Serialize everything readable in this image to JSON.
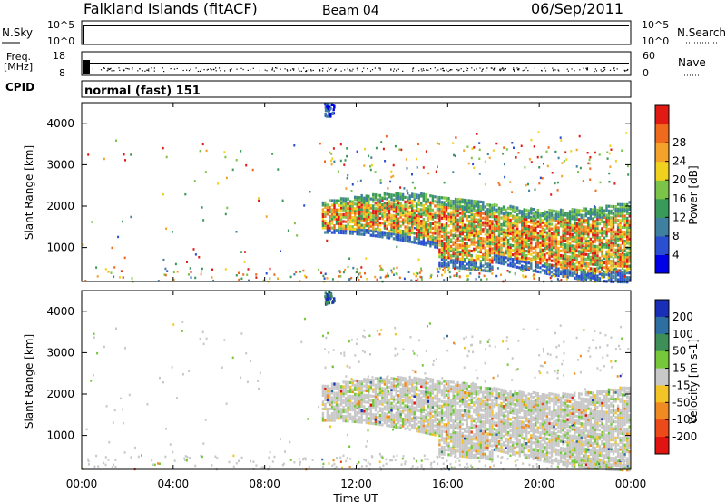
{
  "header": {
    "title": "Falkland Islands (fitACF)",
    "beam": "Beam 04",
    "date": "06/Sep/2011"
  },
  "noise_panel": {
    "left_label": "N.Sky",
    "right_label": "N.Search",
    "ticks_left": [
      "10^5",
      "10^0"
    ],
    "ticks_right": [
      "10^5",
      "10^0"
    ]
  },
  "freq_panel": {
    "left_label_1": "Freq.",
    "left_label_2": "[MHz]",
    "right_label": "Nave",
    "ticks_left": [
      "18",
      "8"
    ],
    "ticks_right": [
      "60",
      "0"
    ]
  },
  "cpid": {
    "label": "CPID",
    "text": "normal (fast) 151"
  },
  "time_axis": {
    "label": "Time UT",
    "ticks": [
      "00:00",
      "04:00",
      "08:00",
      "12:00",
      "16:00",
      "20:00",
      "00:00"
    ]
  },
  "chart_data": [
    {
      "type": "heatmap",
      "name": "power",
      "ylabel": "Slant Range [km]",
      "yticks": [
        "1000",
        "2000",
        "3000",
        "4000"
      ],
      "ylim": [
        180,
        4500
      ],
      "xlim_hours": [
        0,
        24
      ],
      "colorbar": {
        "label": "Power [dB]",
        "ticks": [
          "4",
          "8",
          "12",
          "16",
          "20",
          "24",
          "28"
        ],
        "colors": [
          "#0000e6",
          "#2a4fd0",
          "#3f7fa0",
          "#3a9a5a",
          "#7cc34a",
          "#f0d21e",
          "#f5a22a",
          "#f06a1e",
          "#e21a14"
        ]
      },
      "echo_region": {
        "start_ut": "10:30",
        "end_ut": "24:00",
        "low_km": 800,
        "high_km": 2400
      }
    },
    {
      "type": "heatmap",
      "name": "velocity",
      "ylabel": "Slant Range [km]",
      "yticks": [
        "1000",
        "2000",
        "3000",
        "4000"
      ],
      "ylim": [
        180,
        4500
      ],
      "xlim_hours": [
        0,
        24
      ],
      "colorbar": {
        "label": "Velocity [m s-1]",
        "ticks": [
          "200",
          "100",
          "50",
          "15",
          "-15",
          "-50",
          "-100",
          "-200"
        ],
        "colors": [
          "#1a2fb8",
          "#2d6fa0",
          "#3e8e58",
          "#76c83a",
          "#c8c8c8",
          "#f2c426",
          "#f08a22",
          "#ec4a18",
          "#e01410"
        ]
      },
      "echo_region": {
        "start_ut": "10:30",
        "end_ut": "24:00",
        "low_km": 800,
        "high_km": 2500
      }
    }
  ]
}
